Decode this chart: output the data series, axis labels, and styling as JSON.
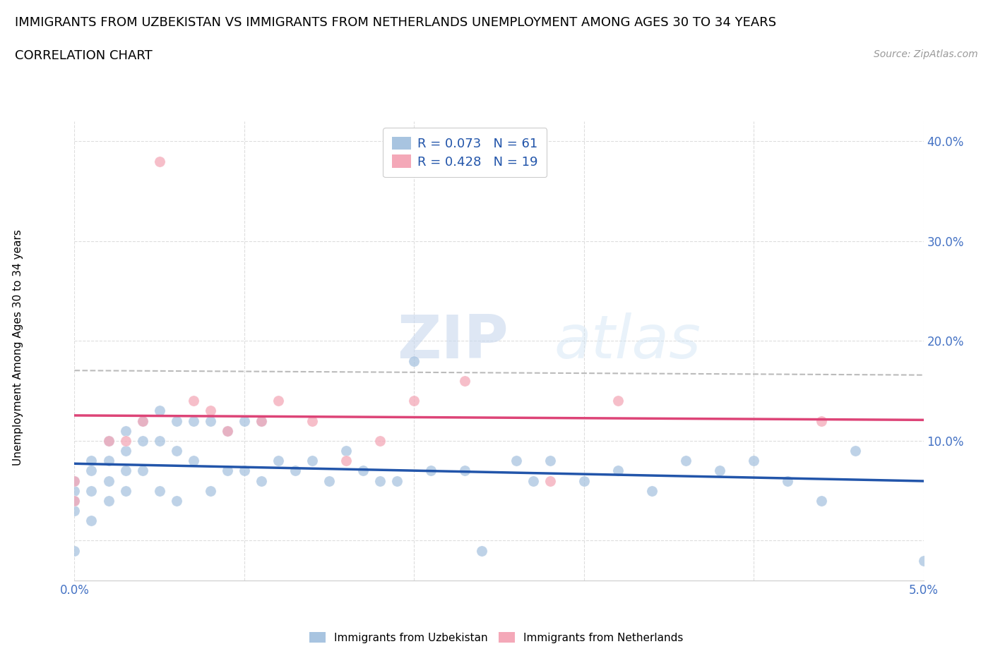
{
  "title_line1": "IMMIGRANTS FROM UZBEKISTAN VS IMMIGRANTS FROM NETHERLANDS UNEMPLOYMENT AMONG AGES 30 TO 34 YEARS",
  "title_line2": "CORRELATION CHART",
  "source_text": "Source: ZipAtlas.com",
  "ylabel": "Unemployment Among Ages 30 to 34 years",
  "x_min": 0.0,
  "x_max": 0.05,
  "y_min": -0.04,
  "y_max": 0.42,
  "x_ticks": [
    0.0,
    0.01,
    0.02,
    0.03,
    0.04,
    0.05
  ],
  "y_ticks": [
    0.0,
    0.1,
    0.2,
    0.3,
    0.4
  ],
  "uzbekistan_color": "#a8c4e0",
  "netherlands_color": "#f4a8b8",
  "uzbekistan_R": 0.073,
  "uzbekistan_N": 61,
  "netherlands_R": 0.428,
  "netherlands_N": 19,
  "uzbekistan_x": [
    0.0,
    0.0,
    0.0,
    0.0,
    0.0,
    0.001,
    0.001,
    0.001,
    0.001,
    0.002,
    0.002,
    0.002,
    0.002,
    0.003,
    0.003,
    0.003,
    0.003,
    0.004,
    0.004,
    0.004,
    0.005,
    0.005,
    0.005,
    0.006,
    0.006,
    0.006,
    0.007,
    0.007,
    0.008,
    0.008,
    0.009,
    0.009,
    0.01,
    0.01,
    0.011,
    0.011,
    0.012,
    0.013,
    0.014,
    0.015,
    0.016,
    0.017,
    0.018,
    0.019,
    0.02,
    0.021,
    0.023,
    0.024,
    0.026,
    0.027,
    0.028,
    0.03,
    0.032,
    0.034,
    0.036,
    0.038,
    0.04,
    0.042,
    0.044,
    0.046,
    0.05
  ],
  "uzbekistan_y": [
    0.06,
    0.05,
    0.04,
    0.03,
    -0.01,
    0.08,
    0.07,
    0.05,
    0.02,
    0.1,
    0.08,
    0.06,
    0.04,
    0.11,
    0.09,
    0.07,
    0.05,
    0.12,
    0.1,
    0.07,
    0.13,
    0.1,
    0.05,
    0.12,
    0.09,
    0.04,
    0.12,
    0.08,
    0.12,
    0.05,
    0.11,
    0.07,
    0.12,
    0.07,
    0.12,
    0.06,
    0.08,
    0.07,
    0.08,
    0.06,
    0.09,
    0.07,
    0.06,
    0.06,
    0.18,
    0.07,
    0.07,
    -0.01,
    0.08,
    0.06,
    0.08,
    0.06,
    0.07,
    0.05,
    0.08,
    0.07,
    0.08,
    0.06,
    0.04,
    0.09,
    -0.02
  ],
  "netherlands_x": [
    0.0,
    0.0,
    0.002,
    0.003,
    0.004,
    0.005,
    0.007,
    0.008,
    0.009,
    0.011,
    0.012,
    0.014,
    0.016,
    0.018,
    0.02,
    0.023,
    0.028,
    0.032,
    0.044
  ],
  "netherlands_y": [
    0.06,
    0.04,
    0.1,
    0.1,
    0.12,
    0.38,
    0.14,
    0.13,
    0.11,
    0.12,
    0.14,
    0.12,
    0.08,
    0.1,
    0.14,
    0.16,
    0.06,
    0.14,
    0.12
  ],
  "watermark_zip": "ZIP",
  "watermark_atlas": "atlas",
  "background_color": "#ffffff",
  "grid_color": "#dddddd",
  "grid_style": "--",
  "trend_line_uzb_color": "#2255aa",
  "trend_line_neth_color": "#dd4477",
  "trend_dashed_color": "#bbbbbb",
  "legend_text_color": "#2255aa",
  "tick_color": "#4472c4",
  "title_fontsize": 13,
  "subtitle_fontsize": 13,
  "source_fontsize": 10,
  "ylabel_fontsize": 11,
  "tick_fontsize": 12
}
